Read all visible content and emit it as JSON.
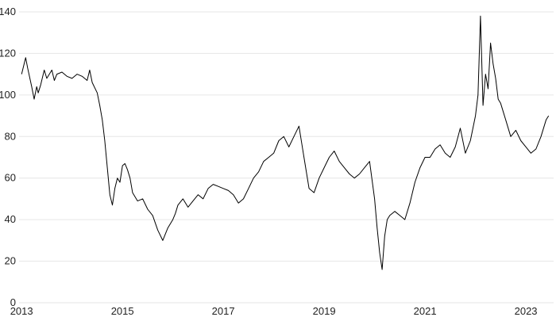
{
  "chart_data": {
    "type": "line",
    "title": "",
    "xlabel": "",
    "ylabel": "",
    "xlim": [
      2012.95,
      2023.55
    ],
    "ylim": [
      0,
      140
    ],
    "grid": true,
    "legend": "none",
    "line_color": "#000000",
    "grid_color": "#e6e6e6",
    "x_ticks": [
      {
        "value": 2013,
        "label": "2013"
      },
      {
        "value": 2015,
        "label": "2015"
      },
      {
        "value": 2017,
        "label": "2017"
      },
      {
        "value": 2019,
        "label": "2019"
      },
      {
        "value": 2021,
        "label": "2021"
      },
      {
        "value": 2023,
        "label": "2023"
      }
    ],
    "y_ticks": [
      {
        "value": 0,
        "label": "0"
      },
      {
        "value": 20,
        "label": "20"
      },
      {
        "value": 40,
        "label": "40"
      },
      {
        "value": 60,
        "label": "60"
      },
      {
        "value": 80,
        "label": "80"
      },
      {
        "value": 100,
        "label": "100"
      },
      {
        "value": 120,
        "label": "120"
      },
      {
        "value": 140,
        "label": "140"
      }
    ],
    "series": [
      {
        "x": [
          2013.0,
          2013.08,
          2013.12,
          2013.2,
          2013.25,
          2013.3,
          2013.33,
          2013.38,
          2013.45,
          2013.5,
          2013.6,
          2013.65,
          2013.7,
          2013.8,
          2013.9,
          2014.0,
          2014.1,
          2014.2,
          2014.3,
          2014.35,
          2014.4,
          2014.5,
          2014.55,
          2014.6,
          2014.65,
          2014.7,
          2014.75,
          2014.8,
          2014.85,
          2014.9,
          2014.95,
          2015.0,
          2015.05,
          2015.1,
          2015.15,
          2015.2,
          2015.3,
          2015.4,
          2015.5,
          2015.6,
          2015.7,
          2015.8,
          2015.9,
          2016.0,
          2016.05,
          2016.1,
          2016.2,
          2016.3,
          2016.4,
          2016.5,
          2016.6,
          2016.7,
          2016.8,
          2016.9,
          2017.0,
          2017.1,
          2017.2,
          2017.3,
          2017.4,
          2017.5,
          2017.6,
          2017.7,
          2017.8,
          2017.9,
          2018.0,
          2018.1,
          2018.2,
          2018.3,
          2018.4,
          2018.5,
          2018.6,
          2018.7,
          2018.8,
          2018.9,
          2019.0,
          2019.1,
          2019.2,
          2019.3,
          2019.4,
          2019.5,
          2019.6,
          2019.7,
          2019.8,
          2019.9,
          2020.0,
          2020.05,
          2020.1,
          2020.15,
          2020.2,
          2020.25,
          2020.3,
          2020.4,
          2020.5,
          2020.6,
          2020.7,
          2020.8,
          2020.9,
          2021.0,
          2021.1,
          2021.2,
          2021.3,
          2021.4,
          2021.5,
          2021.6,
          2021.7,
          2021.8,
          2021.9,
          2022.0,
          2022.05,
          2022.1,
          2022.15,
          2022.2,
          2022.25,
          2022.3,
          2022.35,
          2022.4,
          2022.45,
          2022.5,
          2022.6,
          2022.7,
          2022.8,
          2022.9,
          2023.0,
          2023.1,
          2023.2,
          2023.3,
          2023.4,
          2023.45
        ],
        "y": [
          110,
          118,
          113,
          104,
          98,
          104,
          101,
          105,
          112,
          108,
          112,
          107,
          110,
          111,
          109,
          108,
          110,
          109,
          107,
          112,
          106,
          101,
          95,
          88,
          78,
          65,
          52,
          47,
          55,
          60,
          58,
          66,
          67,
          64,
          60,
          53,
          49,
          50,
          45,
          42,
          35,
          30,
          36,
          40,
          43,
          47,
          50,
          46,
          49,
          52,
          50,
          55,
          57,
          56,
          55,
          54,
          52,
          48,
          50,
          55,
          60,
          63,
          68,
          70,
          72,
          78,
          80,
          75,
          80,
          85,
          70,
          55,
          53,
          60,
          65,
          70,
          73,
          68,
          65,
          62,
          60,
          62,
          65,
          68,
          50,
          36,
          24,
          16,
          32,
          40,
          42,
          44,
          42,
          40,
          48,
          58,
          65,
          70,
          70,
          74,
          76,
          72,
          70,
          75,
          84,
          72,
          78,
          90,
          100,
          138,
          95,
          110,
          103,
          125,
          115,
          108,
          98,
          96,
          88,
          80,
          83,
          78,
          75,
          72,
          74,
          80,
          88,
          90
        ]
      }
    ]
  }
}
